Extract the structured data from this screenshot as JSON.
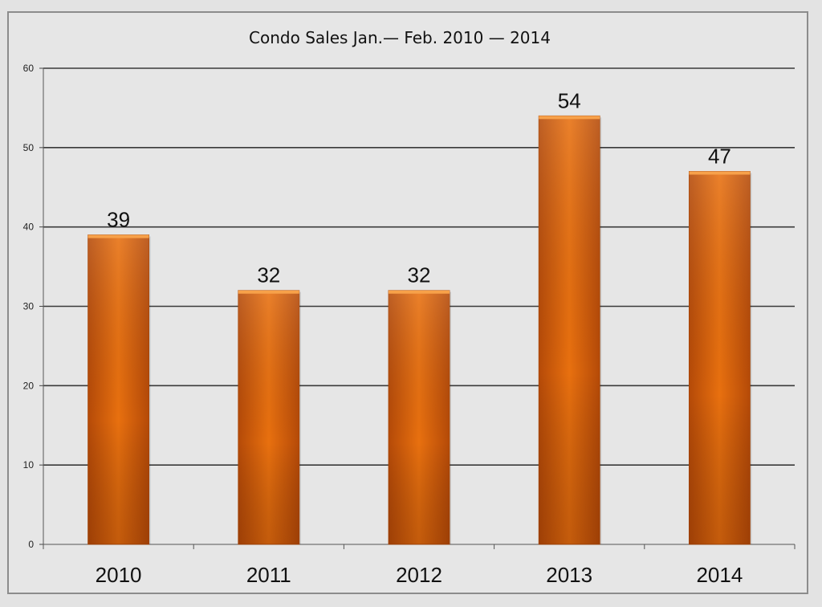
{
  "chart_data": {
    "type": "bar",
    "title": "Condo Sales Jan.— Feb. 2010 — 2014",
    "categories": [
      "2010",
      "2011",
      "2012",
      "2013",
      "2014"
    ],
    "values": [
      39,
      32,
      32,
      54,
      47
    ],
    "data_labels": [
      "39",
      "32",
      "32",
      "54",
      "47"
    ],
    "xlabel": "",
    "ylabel": "",
    "ylim": [
      0,
      60
    ],
    "yticks": [
      0,
      10,
      20,
      30,
      40,
      50,
      60
    ],
    "ytick_labels": [
      "0",
      "10",
      "20",
      "30",
      "40",
      "50",
      "60"
    ],
    "grid": true,
    "legend": "none",
    "colors": {
      "bar": "#e8700f",
      "bar_light": "#f7a14a",
      "bar_dark": "#b54a08",
      "gridline": "#3a3a3a",
      "background": "#e6e6e6"
    }
  }
}
